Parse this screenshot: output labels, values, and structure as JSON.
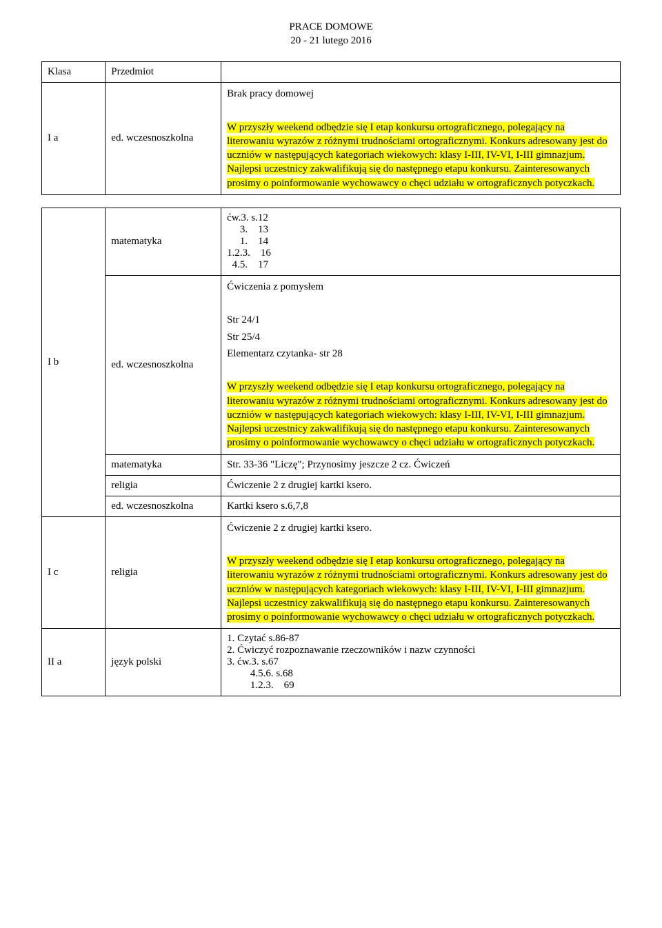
{
  "header": {
    "line1": "PRACE DOMOWE",
    "line2": "20 - 21 lutego 2016"
  },
  "table": {
    "head": {
      "klasa": "Klasa",
      "przedmiot": "Przedmiot"
    },
    "rows": {
      "Ia": {
        "klasa": "I a",
        "przedmiot": "ed. wczesnoszkolna",
        "brak": "Brak pracy domowej",
        "highlight": "W przyszły weekend odbędzie się I etap konkursu ortograficznego, polegający na literowaniu wyrazów z różnymi trudnościami ortograficznymi. Konkurs adresowany jest do uczniów w następujących kategoriach wiekowych: klasy I-III, IV-VI, I-III gimnazjum. Najlepsi uczestnicy zakwalifikują się do następnego etapu konkursu. Zainteresowanych prosimy o poinformowanie wychowawcy o chęci udziału w ortograficznych potyczkach."
      },
      "Ia_mat": {
        "przedmiot": "matematyka",
        "content": "ćw.3. s.12\n     3.    13\n     1.    14\n1.2.3.    16\n  4.5.    17"
      },
      "Ib": {
        "klasa": "I b",
        "przedmiot": "ed. wczesnoszkolna",
        "line1": "Ćwiczenia z pomysłem",
        "line2": "Str 24/1",
        "line3": "Str 25/4",
        "line4": "Elementarz czytanka- str 28",
        "highlight": "W przyszły weekend odbędzie się I etap konkursu ortograficznego, polegający na literowaniu wyrazów z różnymi trudnościami ortograficznymi. Konkurs adresowany jest do uczniów w następujących kategoriach wiekowych: klasy I-III, IV-VI, I-III gimnazjum. Najlepsi uczestnicy zakwalifikują się do następnego etapu konkursu. Zainteresowanych prosimy o poinformowanie wychowawcy o chęci udziału w ortograficznych potyczkach."
      },
      "Ib_mat": {
        "przedmiot": "matematyka",
        "content": "Str. 33-36 \"Liczę\"; Przynosimy jeszcze 2 cz. Ćwiczeń"
      },
      "Ib_rel": {
        "przedmiot": "religia",
        "content": "Ćwiczenie 2 z drugiej kartki ksero."
      },
      "Ic_ed": {
        "przedmiot": "ed. wczesnoszkolna",
        "content": "Kartki ksero s.6,7,8"
      },
      "Ic": {
        "klasa": "I c",
        "przedmiot": "religia",
        "line1": "Ćwiczenie 2 z drugiej kartki ksero.",
        "highlight": "W przyszły weekend odbędzie się I etap konkursu ortograficznego, polegający na literowaniu wyrazów z różnymi trudnościami ortograficznymi. Konkurs adresowany jest do uczniów w następujących kategoriach wiekowych: klasy I-III, IV-VI, I-III gimnazjum. Najlepsi uczestnicy zakwalifikują się do następnego etapu konkursu. Zainteresowanych prosimy o poinformowanie wychowawcy o chęci udziału w ortograficznych potyczkach."
      },
      "IIa": {
        "klasa": "II a",
        "przedmiot": "język polski",
        "content": "1. Czytać s.86-87\n2. Ćwiczyć rozpoznawanie rzeczowników i nazw czynności\n3. ćw.3. s.67\n         4.5.6. s.68\n         1.2.3.    69"
      }
    }
  }
}
